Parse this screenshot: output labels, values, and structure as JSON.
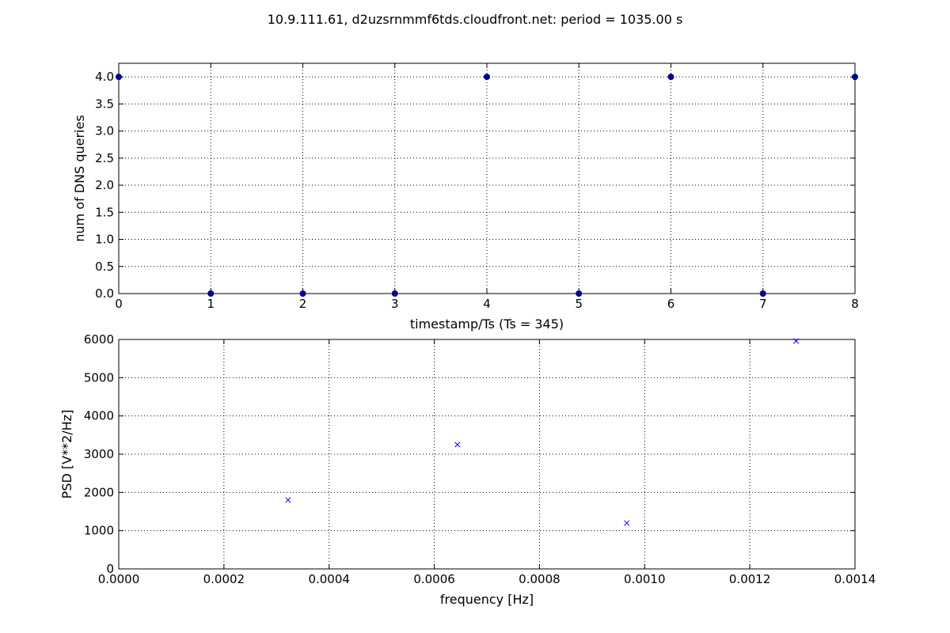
{
  "figure": {
    "title": "10.9.111.61, d2uzsrnmmf6tds.cloudfront.net: period = 1035.00 s"
  },
  "chart_data": [
    {
      "type": "scatter",
      "marker": "circle",
      "color": "#00008b",
      "xlabel": "timestamp/Ts (Ts = 345)",
      "ylabel": "num of DNS queries",
      "xlim": [
        0,
        8
      ],
      "ylim": [
        0,
        4.25
      ],
      "grid": true,
      "xticks": [
        0,
        1,
        2,
        3,
        4,
        5,
        6,
        7,
        8
      ],
      "xtick_labels": [
        "0",
        "1",
        "2",
        "3",
        "4",
        "5",
        "6",
        "7",
        "8"
      ],
      "yticks": [
        0,
        0.5,
        1,
        1.5,
        2,
        2.5,
        3,
        3.5,
        4
      ],
      "ytick_labels": [
        "0.0",
        "0.5",
        "1.0",
        "1.5",
        "2.0",
        "2.5",
        "3.0",
        "3.5",
        "4.0"
      ],
      "x": [
        0,
        1,
        2,
        3,
        4,
        5,
        6,
        7,
        8
      ],
      "y": [
        4,
        0,
        0,
        0,
        4,
        0,
        4,
        0,
        4
      ]
    },
    {
      "type": "scatter",
      "marker": "x",
      "color": "#0000ff",
      "xlabel": "frequency [Hz]",
      "ylabel": "PSD [V**2/Hz]",
      "xlim": [
        0,
        0.0014
      ],
      "ylim": [
        0,
        6000
      ],
      "grid": true,
      "xticks": [
        0,
        0.0002,
        0.0004,
        0.0006,
        0.0008,
        0.001,
        0.0012,
        0.0014
      ],
      "xtick_labels": [
        "0.0000",
        "0.0002",
        "0.0004",
        "0.0006",
        "0.0008",
        "0.0010",
        "0.0012",
        "0.0014"
      ],
      "yticks": [
        0,
        1000,
        2000,
        3000,
        4000,
        5000,
        6000
      ],
      "ytick_labels": [
        "0",
        "1000",
        "2000",
        "3000",
        "4000",
        "5000",
        "6000"
      ],
      "x": [
        0.000322,
        0.000644,
        0.000966,
        0.001288
      ],
      "y": [
        1800,
        3250,
        1200,
        5960
      ]
    }
  ]
}
